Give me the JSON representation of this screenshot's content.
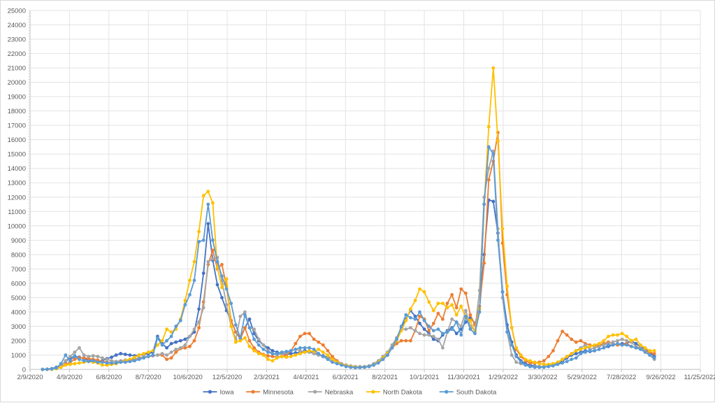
{
  "chart_data": {
    "type": "line",
    "title": "",
    "xlabel": "",
    "ylabel": "",
    "ylim": [
      0,
      25000
    ],
    "y_ticks": [
      0,
      1000,
      2000,
      3000,
      4000,
      5000,
      6000,
      7000,
      8000,
      9000,
      10000,
      11000,
      12000,
      13000,
      14000,
      15000,
      16000,
      17000,
      18000,
      19000,
      20000,
      21000,
      22000,
      23000,
      24000,
      25000
    ],
    "xlim": [
      "2/9/2020",
      "11/25/2022"
    ],
    "x_ticks": [
      "2/9/2020",
      "4/9/2020",
      "6/8/2020",
      "8/7/2020",
      "10/6/2020",
      "12/5/2020",
      "2/3/2021",
      "4/4/2021",
      "6/3/2021",
      "8/2/2021",
      "10/1/2021",
      "11/30/2021",
      "1/29/2022",
      "3/30/2022",
      "5/29/2022",
      "7/28/2022",
      "9/26/2022",
      "11/25/2022"
    ],
    "x_tick_step_days": 60,
    "x_start_date": "2020-02-28",
    "x_step_days": 7,
    "grid": true,
    "legend_position": "bottom",
    "series": [
      {
        "name": "Iowa",
        "color": "#4472C4",
        "values": [
          0,
          20,
          60,
          150,
          300,
          550,
          800,
          900,
          850,
          750,
          650,
          600,
          550,
          600,
          750,
          850,
          1000,
          1100,
          1050,
          1000,
          950,
          1000,
          1050,
          1100,
          1200,
          2300,
          1800,
          1500,
          1800,
          1900,
          2000,
          2100,
          2300,
          2600,
          4200,
          6700,
          10150,
          7600,
          5900,
          5000,
          4100,
          3400,
          2600,
          2200,
          2900,
          3500,
          2500,
          2000,
          1700,
          1500,
          1300,
          1200,
          1100,
          1050,
          1100,
          1150,
          1200,
          1300,
          1250,
          1150,
          1050,
          950,
          850,
          700,
          500,
          350,
          250,
          180,
          150,
          150,
          180,
          250,
          350,
          500,
          700,
          1000,
          1500,
          2200,
          2900,
          3500,
          4100,
          3700,
          3200,
          2800,
          2500,
          2100,
          2000,
          2400,
          2700,
          2900,
          2500,
          2800,
          3300,
          3600,
          3200,
          4200,
          8000,
          11800,
          11700,
          9500,
          5400,
          3100,
          1900,
          1000,
          600,
          400,
          300,
          250,
          200,
          200,
          250,
          300,
          400,
          550,
          800,
          1000,
          1100,
          1200,
          1300,
          1250,
          1300,
          1400,
          1500,
          1600,
          1700,
          1750,
          1800,
          1800,
          2000,
          1800,
          1600,
          1400,
          1200,
          900
        ]
      },
      {
        "name": "Minnesota",
        "color": "#ED7D31",
        "values": [
          0,
          0,
          20,
          80,
          200,
          350,
          500,
          700,
          800,
          800,
          750,
          700,
          650,
          550,
          500,
          450,
          450,
          500,
          550,
          650,
          700,
          800,
          850,
          900,
          950,
          1000,
          1000,
          700,
          800,
          1200,
          1450,
          1500,
          1600,
          2000,
          2900,
          4700,
          7300,
          8300,
          7000,
          7300,
          5800,
          3400,
          2600,
          2100,
          2900,
          2000,
          1500,
          1200,
          1050,
          950,
          900,
          850,
          900,
          1000,
          1300,
          1800,
          2300,
          2500,
          2500,
          2100,
          1900,
          1700,
          1300,
          900,
          600,
          400,
          300,
          200,
          150,
          150,
          150,
          200,
          300,
          500,
          800,
          1200,
          1500,
          1800,
          2000,
          2000,
          2000,
          2700,
          3700,
          3500,
          2700,
          3200,
          3900,
          3500,
          4600,
          5200,
          4300,
          5600,
          5300,
          3800,
          3100,
          4400,
          7400,
          13200,
          14500,
          16500,
          8800,
          5200,
          2900,
          1400,
          900,
          600,
          450,
          450,
          500,
          600,
          900,
          1300,
          2000,
          2650,
          2400,
          2100,
          1900,
          2000,
          1800,
          1700,
          1600,
          1700,
          1800,
          1900,
          1800,
          1700,
          1700,
          1800,
          1600,
          1500,
          1500,
          1300,
          1200,
          1100
        ]
      },
      {
        "name": "Nebraska",
        "color": "#A5A5A5",
        "values": [
          0,
          10,
          40,
          100,
          250,
          600,
          900,
          1200,
          1500,
          1000,
          900,
          950,
          900,
          800,
          700,
          600,
          550,
          600,
          650,
          700,
          750,
          800,
          900,
          900,
          950,
          1000,
          1100,
          1000,
          1200,
          1400,
          1500,
          1700,
          2300,
          2800,
          3300,
          4300,
          7500,
          7700,
          7800,
          6200,
          4500,
          3000,
          2100,
          3700,
          4000,
          2900,
          2800,
          2100,
          1700,
          1300,
          1100,
          1000,
          1100,
          1150,
          1300,
          1400,
          1300,
          1200,
          1200,
          1100,
          1000,
          900,
          800,
          650,
          500,
          400,
          300,
          250,
          200,
          200,
          200,
          250,
          400,
          600,
          900,
          1200,
          1700,
          2200,
          2800,
          2800,
          2900,
          2700,
          2500,
          2400,
          2400,
          2300,
          2100,
          1500,
          2600,
          3500,
          3300,
          3000,
          4100,
          3000,
          2700,
          5500,
          12000,
          14000,
          15200,
          9800,
          5000,
          2600,
          1000,
          500,
          400,
          300,
          200,
          200,
          200,
          200,
          250,
          350,
          500,
          700,
          900,
          1100,
          1300,
          1500,
          1700,
          1400,
          1500,
          1600,
          1700,
          1800,
          1900,
          2000,
          2100,
          2000,
          1900,
          1600,
          1500,
          1300,
          1000,
          700
        ]
      },
      {
        "name": "North Dakota",
        "color": "#FFC000",
        "values": [
          0,
          0,
          10,
          50,
          150,
          300,
          350,
          400,
          450,
          500,
          550,
          500,
          450,
          300,
          300,
          350,
          400,
          500,
          600,
          700,
          850,
          1000,
          1100,
          1200,
          1300,
          1700,
          2000,
          2800,
          2600,
          2800,
          3500,
          4800,
          6200,
          7500,
          9600,
          12100,
          12400,
          11600,
          7100,
          5700,
          6300,
          3000,
          1900,
          2000,
          2200,
          1600,
          1300,
          1100,
          1000,
          700,
          600,
          800,
          900,
          850,
          900,
          1000,
          1100,
          1200,
          1300,
          1250,
          1400,
          1200,
          1000,
          700,
          500,
          350,
          250,
          200,
          150,
          150,
          150,
          200,
          300,
          500,
          800,
          1100,
          1500,
          2000,
          2700,
          3400,
          4200,
          4800,
          5600,
          5400,
          4700,
          4100,
          4600,
          4600,
          4300,
          4500,
          3800,
          4400,
          3600,
          3400,
          2600,
          4200,
          11500,
          16900,
          21000,
          15900,
          9800,
          5800,
          2900,
          1500,
          1000,
          700,
          600,
          500,
          400,
          350,
          350,
          400,
          500,
          700,
          900,
          1100,
          1300,
          1400,
          1500,
          1600,
          1700,
          1800,
          2000,
          2300,
          2400,
          2400,
          2500,
          2300,
          2000,
          2100,
          1700,
          1500,
          1300,
          1300
        ]
      },
      {
        "name": "South Dakota",
        "color": "#5B9BD5",
        "values": [
          0,
          10,
          30,
          100,
          400,
          1000,
          600,
          950,
          700,
          600,
          550,
          600,
          500,
          500,
          450,
          450,
          450,
          500,
          500,
          550,
          600,
          700,
          800,
          900,
          1000,
          2200,
          1700,
          2000,
          2300,
          3000,
          3400,
          4500,
          5200,
          6200,
          8900,
          9000,
          11500,
          9000,
          7500,
          6500,
          5600,
          4600,
          3100,
          2200,
          3800,
          2900,
          2100,
          1700,
          1400,
          1200,
          1100,
          1100,
          1200,
          1250,
          1300,
          1400,
          1500,
          1500,
          1500,
          1400,
          1100,
          900,
          700,
          500,
          400,
          300,
          200,
          150,
          120,
          130,
          150,
          200,
          300,
          450,
          700,
          1000,
          1500,
          2100,
          3000,
          3800,
          3600,
          3500,
          4000,
          3400,
          3000,
          2700,
          2800,
          2500,
          2600,
          2800,
          3300,
          2400,
          3700,
          2800,
          2500,
          4000,
          11500,
          15500,
          15000,
          9000,
          5400,
          2600,
          1700,
          900,
          500,
          300,
          200,
          150,
          150,
          150,
          200,
          250,
          350,
          450,
          550,
          700,
          800,
          1100,
          1200,
          1300,
          1300,
          1400,
          1500,
          1700,
          1700,
          1800,
          1700,
          1700,
          1600,
          1500,
          1400,
          1200,
          1000,
          800
        ]
      }
    ]
  }
}
